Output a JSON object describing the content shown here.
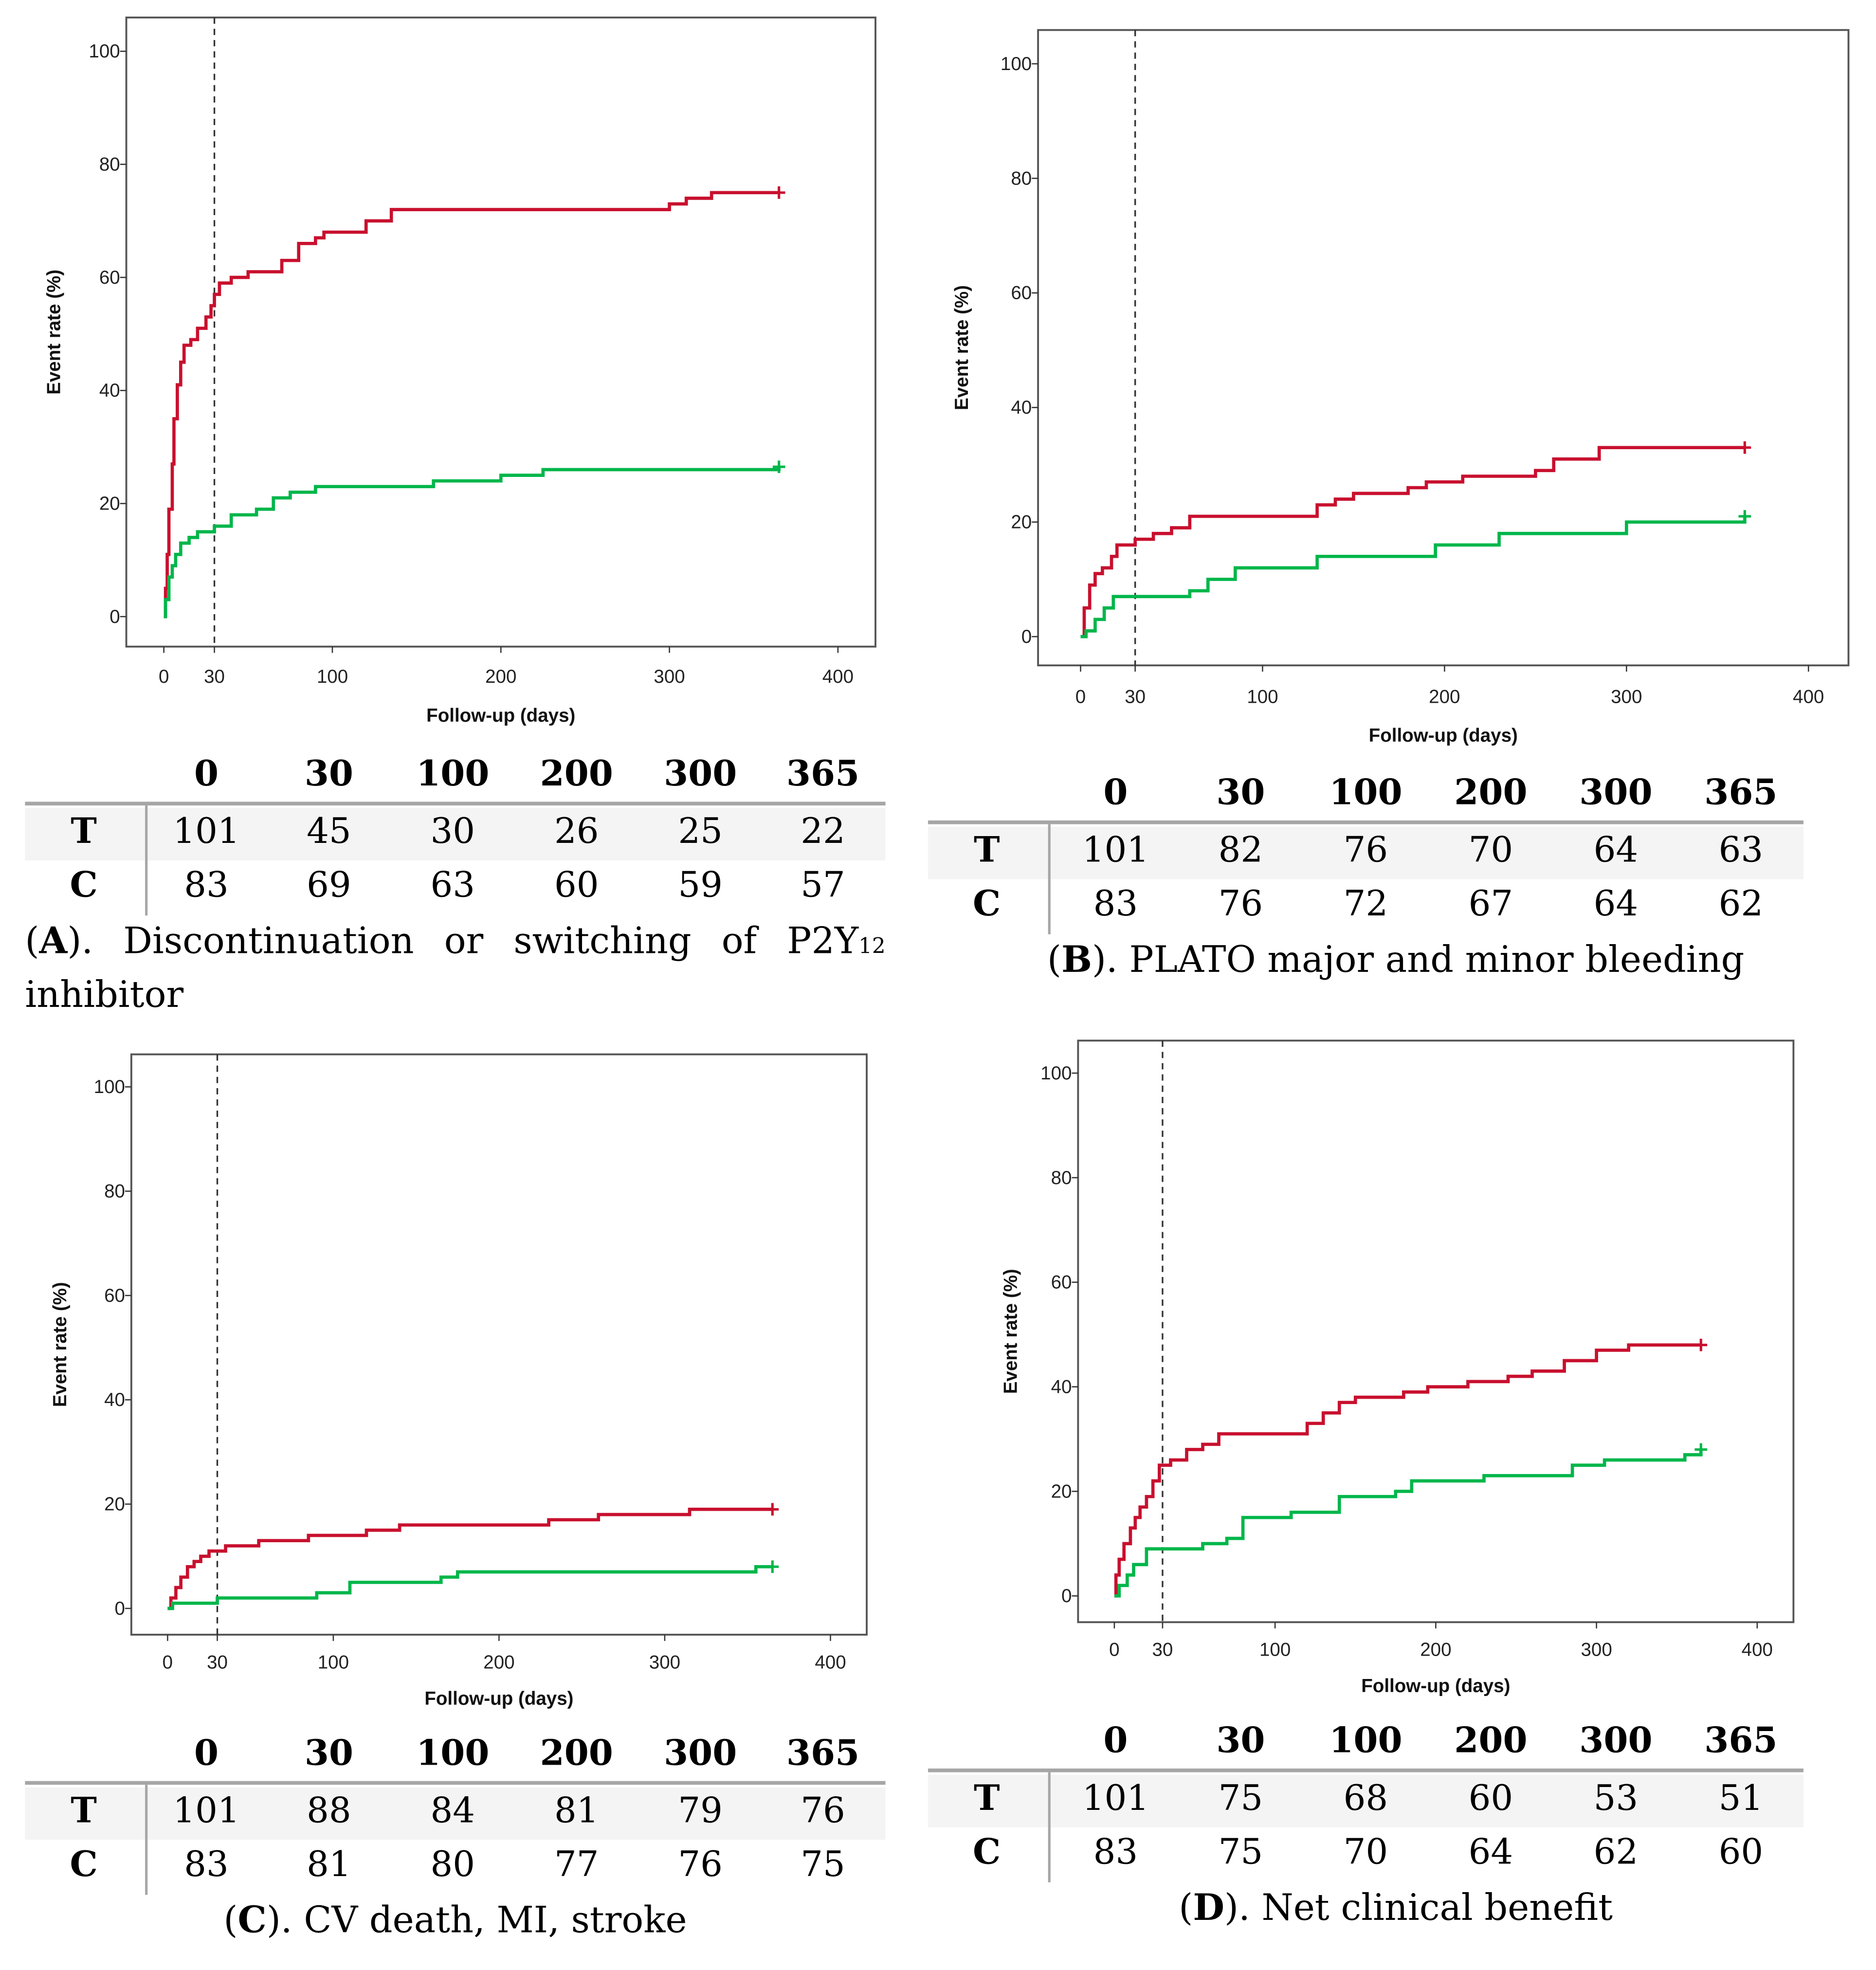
{
  "colors": {
    "treatment": "#c8102e",
    "control": "#00b64a",
    "frame": "#555555"
  },
  "chart_data": [
    {
      "id": "A",
      "type": "line",
      "title": "Discontinuation or switching of P2Y12 inhibitor",
      "xlabel": "Follow-up (days)",
      "ylabel": "Event rate (%)",
      "xlim": [
        0,
        400
      ],
      "ylim": [
        0,
        100
      ],
      "xticks": [
        "0",
        "30",
        "100",
        "200",
        "300",
        "400"
      ],
      "yticks": [
        "0",
        "20",
        "40",
        "60",
        "80",
        "100"
      ],
      "reference_line_x": 30,
      "series": [
        {
          "name": "T",
          "color": "#c8102e",
          "steps": [
            [
              0,
              0
            ],
            [
              1,
              5
            ],
            [
              2,
              11
            ],
            [
              3,
              19
            ],
            [
              5,
              27
            ],
            [
              6,
              35
            ],
            [
              8,
              41
            ],
            [
              10,
              45
            ],
            [
              12,
              48
            ],
            [
              16,
              49
            ],
            [
              20,
              51
            ],
            [
              25,
              53
            ],
            [
              28,
              55
            ],
            [
              30,
              57
            ],
            [
              33,
              59
            ],
            [
              40,
              60
            ],
            [
              50,
              61
            ],
            [
              70,
              63
            ],
            [
              80,
              66
            ],
            [
              90,
              67
            ],
            [
              95,
              68
            ],
            [
              120,
              70
            ],
            [
              135,
              72
            ],
            [
              300,
              73
            ],
            [
              310,
              74
            ],
            [
              325,
              75
            ],
            [
              365,
              75
            ]
          ]
        },
        {
          "name": "C",
          "color": "#00b64a",
          "steps": [
            [
              0,
              0
            ],
            [
              1,
              3
            ],
            [
              3,
              7
            ],
            [
              5,
              9
            ],
            [
              7,
              11
            ],
            [
              10,
              13
            ],
            [
              15,
              14
            ],
            [
              20,
              15
            ],
            [
              30,
              16
            ],
            [
              40,
              18
            ],
            [
              55,
              19
            ],
            [
              65,
              21
            ],
            [
              75,
              22
            ],
            [
              90,
              23
            ],
            [
              160,
              24
            ],
            [
              200,
              25
            ],
            [
              225,
              26
            ],
            [
              365,
              26.5
            ]
          ]
        }
      ],
      "risk_table": {
        "times": [
          "0",
          "30",
          "100",
          "200",
          "300",
          "365"
        ],
        "rows": [
          {
            "label": "T",
            "values": [
              "101",
              "45",
              "30",
              "26",
              "25",
              "22"
            ]
          },
          {
            "label": "C",
            "values": [
              "83",
              "69",
              "63",
              "60",
              "59",
              "57"
            ]
          }
        ]
      },
      "caption": {
        "letter": "A",
        "prefix": "(",
        "suffix": ").",
        "words": [
          "Discontinuation",
          "or",
          "switching",
          "of",
          "P2Y"
        ],
        "subscript": "12",
        "line2": "inhibitor"
      }
    },
    {
      "id": "B",
      "type": "line",
      "title": "PLATO major and minor bleeding",
      "xlabel": "Follow-up (days)",
      "ylabel": "Event rate (%)",
      "xlim": [
        0,
        400
      ],
      "ylim": [
        0,
        100
      ],
      "xticks": [
        "0",
        "30",
        "100",
        "200",
        "300",
        "400"
      ],
      "yticks": [
        "0",
        "20",
        "40",
        "60",
        "80",
        "100"
      ],
      "reference_line_x": 30,
      "series": [
        {
          "name": "T",
          "color": "#c8102e",
          "steps": [
            [
              0,
              0
            ],
            [
              2,
              5
            ],
            [
              5,
              9
            ],
            [
              8,
              11
            ],
            [
              12,
              12
            ],
            [
              17,
              14
            ],
            [
              20,
              16
            ],
            [
              30,
              17
            ],
            [
              40,
              18
            ],
            [
              50,
              19
            ],
            [
              60,
              21
            ],
            [
              120,
              21
            ],
            [
              130,
              23
            ],
            [
              140,
              24
            ],
            [
              150,
              25
            ],
            [
              180,
              26
            ],
            [
              190,
              27
            ],
            [
              210,
              28
            ],
            [
              250,
              29
            ],
            [
              260,
              31
            ],
            [
              285,
              33
            ],
            [
              365,
              33
            ]
          ]
        },
        {
          "name": "C",
          "color": "#00b64a",
          "steps": [
            [
              0,
              0
            ],
            [
              3,
              1
            ],
            [
              8,
              3
            ],
            [
              13,
              5
            ],
            [
              18,
              7
            ],
            [
              60,
              8
            ],
            [
              70,
              10
            ],
            [
              85,
              12
            ],
            [
              130,
              14
            ],
            [
              195,
              16
            ],
            [
              230,
              18
            ],
            [
              300,
              20
            ],
            [
              365,
              21
            ]
          ]
        }
      ],
      "risk_table": {
        "times": [
          "0",
          "30",
          "100",
          "200",
          "300",
          "365"
        ],
        "rows": [
          {
            "label": "T",
            "values": [
              "101",
              "82",
              "76",
              "70",
              "64",
              "63"
            ]
          },
          {
            "label": "C",
            "values": [
              "83",
              "76",
              "72",
              "67",
              "64",
              "62"
            ]
          }
        ]
      },
      "caption": {
        "letter": "B",
        "prefix": "(",
        "suffix": ").",
        "text": "PLATO major and minor bleeding"
      }
    },
    {
      "id": "C",
      "type": "line",
      "title": "CV death, MI, stroke",
      "xlabel": "Follow-up (days)",
      "ylabel": "Event rate (%)",
      "xlim": [
        0,
        400
      ],
      "ylim": [
        0,
        100
      ],
      "xticks": [
        "0",
        "30",
        "100",
        "200",
        "300",
        "400"
      ],
      "yticks": [
        "0",
        "20",
        "40",
        "60",
        "80",
        "100"
      ],
      "reference_line_x": 30,
      "series": [
        {
          "name": "T",
          "color": "#c8102e",
          "steps": [
            [
              0,
              0
            ],
            [
              2,
              2
            ],
            [
              5,
              4
            ],
            [
              8,
              6
            ],
            [
              12,
              8
            ],
            [
              16,
              9
            ],
            [
              20,
              10
            ],
            [
              25,
              11
            ],
            [
              35,
              12
            ],
            [
              55,
              13
            ],
            [
              85,
              14
            ],
            [
              120,
              15
            ],
            [
              140,
              16
            ],
            [
              230,
              17
            ],
            [
              260,
              18
            ],
            [
              315,
              19
            ],
            [
              365,
              19
            ]
          ]
        },
        {
          "name": "C",
          "color": "#00b64a",
          "steps": [
            [
              0,
              0
            ],
            [
              3,
              1
            ],
            [
              30,
              2
            ],
            [
              90,
              3
            ],
            [
              110,
              5
            ],
            [
              165,
              6
            ],
            [
              175,
              7
            ],
            [
              355,
              8
            ],
            [
              365,
              8
            ]
          ]
        }
      ],
      "risk_table": {
        "times": [
          "0",
          "30",
          "100",
          "200",
          "300",
          "365"
        ],
        "rows": [
          {
            "label": "T",
            "values": [
              "101",
              "88",
              "84",
              "81",
              "79",
              "76"
            ]
          },
          {
            "label": "C",
            "values": [
              "83",
              "81",
              "80",
              "77",
              "76",
              "75"
            ]
          }
        ]
      },
      "caption": {
        "letter": "C",
        "prefix": "(",
        "suffix": ").",
        "text": "CV death, MI, stroke"
      }
    },
    {
      "id": "D",
      "type": "line",
      "title": "Net clinical benefit",
      "xlabel": "Follow-up (days)",
      "ylabel": "Event rate (%)",
      "xlim": [
        0,
        400
      ],
      "ylim": [
        0,
        100
      ],
      "xticks": [
        "0",
        "30",
        "100",
        "200",
        "300",
        "400"
      ],
      "yticks": [
        "0",
        "20",
        "40",
        "60",
        "80",
        "100"
      ],
      "reference_line_x": 30,
      "series": [
        {
          "name": "T",
          "color": "#c8102e",
          "steps": [
            [
              0,
              0
            ],
            [
              1,
              4
            ],
            [
              3,
              7
            ],
            [
              6,
              10
            ],
            [
              10,
              13
            ],
            [
              13,
              15
            ],
            [
              16,
              17
            ],
            [
              20,
              19
            ],
            [
              24,
              22
            ],
            [
              28,
              25
            ],
            [
              35,
              26
            ],
            [
              45,
              28
            ],
            [
              55,
              29
            ],
            [
              65,
              31
            ],
            [
              120,
              33
            ],
            [
              130,
              35
            ],
            [
              140,
              37
            ],
            [
              150,
              38
            ],
            [
              180,
              39
            ],
            [
              195,
              40
            ],
            [
              220,
              41
            ],
            [
              245,
              42
            ],
            [
              260,
              43
            ],
            [
              280,
              45
            ],
            [
              300,
              47
            ],
            [
              320,
              48
            ],
            [
              365,
              48
            ]
          ]
        },
        {
          "name": "C",
          "color": "#00b64a",
          "steps": [
            [
              0,
              0
            ],
            [
              3,
              2
            ],
            [
              8,
              4
            ],
            [
              12,
              6
            ],
            [
              20,
              9
            ],
            [
              55,
              10
            ],
            [
              70,
              11
            ],
            [
              80,
              15
            ],
            [
              110,
              16
            ],
            [
              140,
              19
            ],
            [
              175,
              20
            ],
            [
              185,
              22
            ],
            [
              230,
              23
            ],
            [
              285,
              25
            ],
            [
              305,
              26
            ],
            [
              355,
              27
            ],
            [
              365,
              28
            ]
          ]
        }
      ],
      "risk_table": {
        "times": [
          "0",
          "30",
          "100",
          "200",
          "300",
          "365"
        ],
        "rows": [
          {
            "label": "T",
            "values": [
              "101",
              "75",
              "68",
              "60",
              "53",
              "51"
            ]
          },
          {
            "label": "C",
            "values": [
              "83",
              "75",
              "70",
              "64",
              "62",
              "60"
            ]
          }
        ]
      },
      "caption": {
        "letter": "D",
        "prefix": "(",
        "suffix": ").",
        "text": "Net clinical benefit"
      }
    }
  ]
}
